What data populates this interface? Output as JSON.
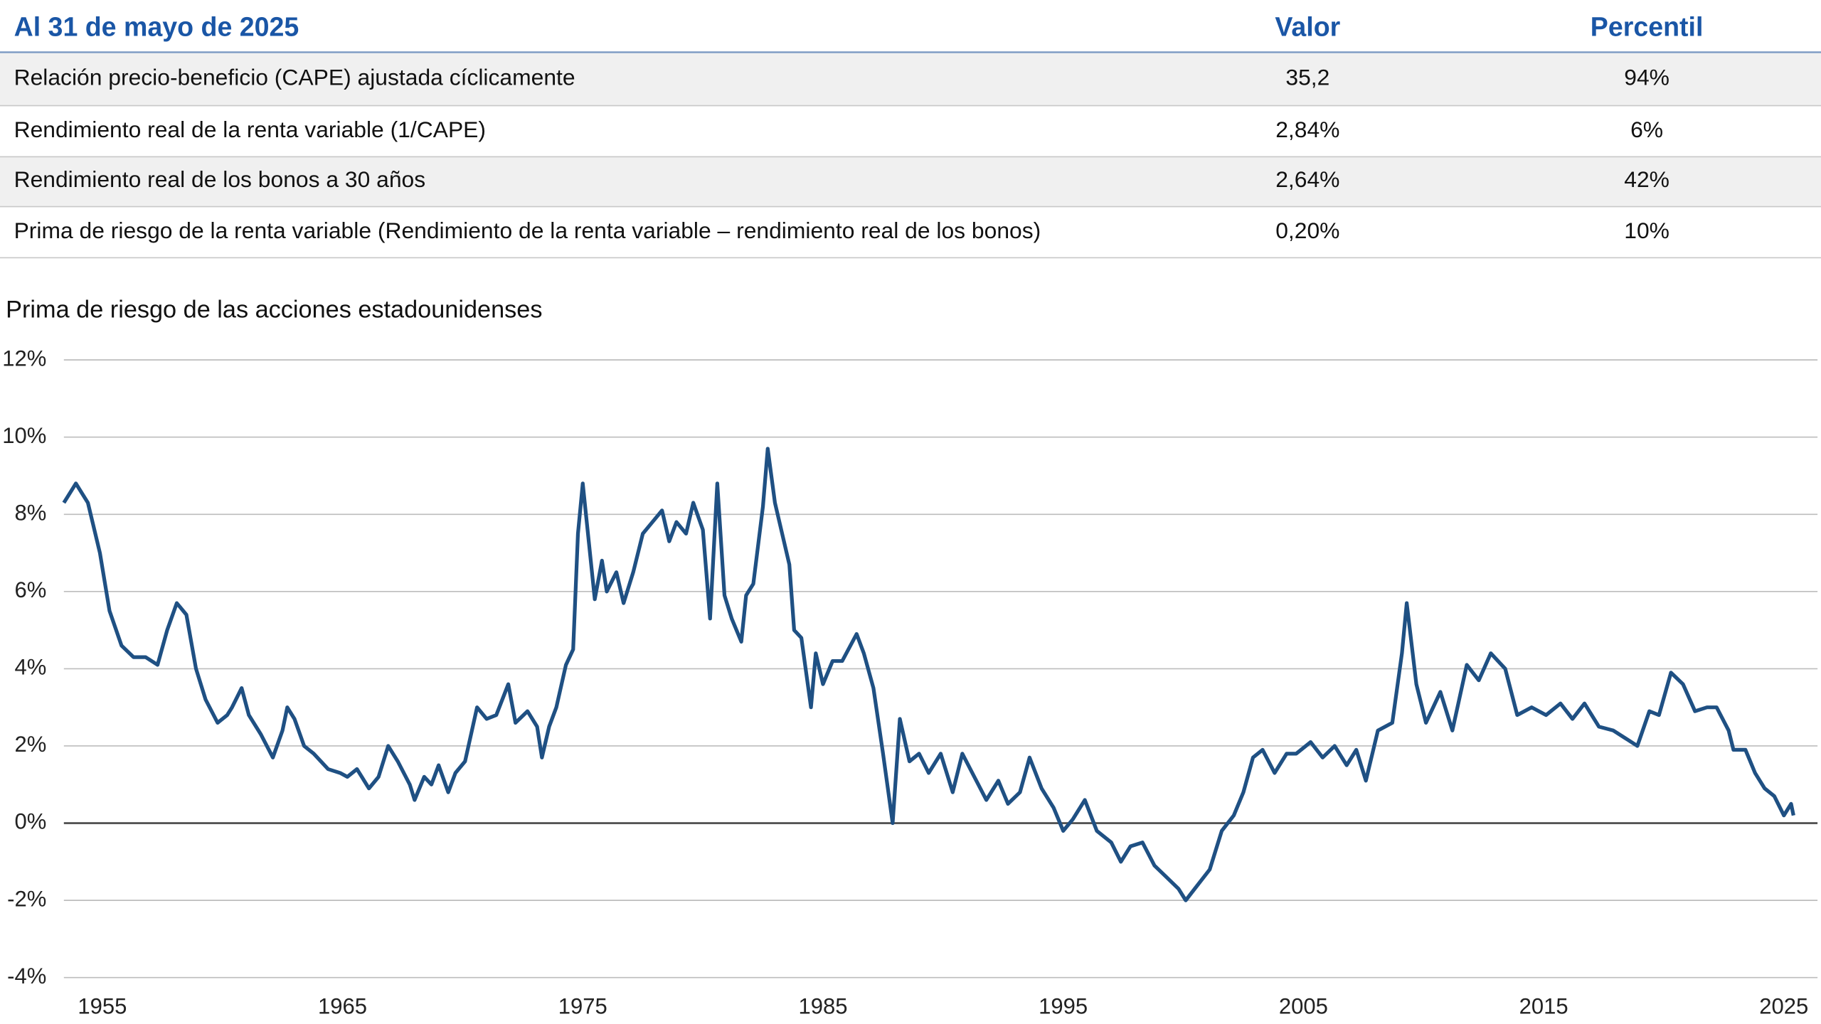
{
  "table": {
    "title": "Al 31 de mayo de 2025",
    "columns": [
      "Valor",
      "Percentil"
    ],
    "rows": [
      [
        "Relación precio-beneficio (CAPE) ajustada cíclicamente",
        "35,2",
        "94%"
      ],
      [
        "Rendimiento real de la renta variable (1/CAPE)",
        "2,84%",
        "6%"
      ],
      [
        "Rendimiento real de los bonos a 30 años",
        "2,64%",
        "42%"
      ],
      [
        "Prima de riesgo de la renta variable (Rendimiento de la renta variable – rendimiento real de los bonos)",
        "0,20%",
        "10%"
      ]
    ]
  },
  "chart_data": {
    "type": "line",
    "title": "Prima de riesgo de las acciones estadounidenses",
    "x": [
      1953.4,
      1953.9,
      1954.4,
      1954.9,
      1955.3,
      1955.8,
      1956.3,
      1956.8,
      1957.3,
      1957.7,
      1958.1,
      1958.5,
      1958.9,
      1959.3,
      1959.8,
      1960.2,
      1960.4,
      1960.8,
      1961.1,
      1961.6,
      1962.1,
      1962.5,
      1962.7,
      1963.0,
      1963.4,
      1963.8,
      1964.4,
      1964.9,
      1965.2,
      1965.6,
      1966.1,
      1966.5,
      1966.9,
      1967.3,
      1967.8,
      1968.0,
      1968.4,
      1968.7,
      1969.0,
      1969.4,
      1969.7,
      1970.1,
      1970.6,
      1971.0,
      1971.4,
      1971.9,
      1972.2,
      1972.7,
      1973.1,
      1973.3,
      1973.6,
      1973.9,
      1974.3,
      1974.6,
      1974.8,
      1975.0,
      1975.3,
      1975.5,
      1975.8,
      1976.0,
      1976.4,
      1976.7,
      1977.1,
      1977.5,
      1977.9,
      1978.3,
      1978.6,
      1978.9,
      1979.3,
      1979.6,
      1980.0,
      1980.3,
      1980.6,
      1980.9,
      1981.2,
      1981.6,
      1981.8,
      1982.1,
      1982.5,
      1982.7,
      1983.0,
      1983.3,
      1983.6,
      1983.8,
      1984.1,
      1984.5,
      1984.7,
      1985.0,
      1985.4,
      1985.8,
      1986.4,
      1986.7,
      1987.1,
      1987.5,
      1987.9,
      1988.2,
      1988.6,
      1989.0,
      1989.4,
      1989.9,
      1990.4,
      1990.8,
      1991.3,
      1991.8,
      1992.3,
      1992.7,
      1993.2,
      1993.6,
      1994.1,
      1994.6,
      1995.0,
      1995.4,
      1995.9,
      1996.4,
      1997.0,
      1997.4,
      1997.8,
      1998.3,
      1998.8,
      1999.3,
      1999.8,
      2000.1,
      2000.6,
      2001.1,
      2001.6,
      2002.1,
      2002.5,
      2002.9,
      2003.3,
      2003.8,
      2004.3,
      2004.7,
      2005.3,
      2005.8,
      2006.3,
      2006.8,
      2007.2,
      2007.6,
      2008.1,
      2008.7,
      2009.1,
      2009.3,
      2009.7,
      2010.1,
      2010.7,
      2011.2,
      2011.8,
      2012.3,
      2012.8,
      2013.4,
      2013.9,
      2014.5,
      2015.1,
      2015.7,
      2016.2,
      2016.7,
      2017.3,
      2017.9,
      2018.4,
      2018.9,
      2019.4,
      2019.8,
      2020.3,
      2020.8,
      2021.3,
      2021.8,
      2022.2,
      2022.7,
      2022.9,
      2023.4,
      2023.8,
      2024.2,
      2024.6,
      2025.0,
      2025.3,
      2025.4
    ],
    "series": [
      {
        "color": "#1f5083",
        "values": [
          8.3,
          8.8,
          8.3,
          7.0,
          5.5,
          4.6,
          4.3,
          4.3,
          4.1,
          5.0,
          5.7,
          5.4,
          4.0,
          3.2,
          2.6,
          2.8,
          3.0,
          3.5,
          2.8,
          2.3,
          1.7,
          2.4,
          3.0,
          2.7,
          2.0,
          1.8,
          1.4,
          1.3,
          1.2,
          1.4,
          0.9,
          1.2,
          2.0,
          1.6,
          1.0,
          0.6,
          1.2,
          1.0,
          1.5,
          0.8,
          1.3,
          1.6,
          3.0,
          2.7,
          2.8,
          3.6,
          2.6,
          2.9,
          2.5,
          1.7,
          2.5,
          3.0,
          4.1,
          4.5,
          7.5,
          8.8,
          7.0,
          5.8,
          6.8,
          6.0,
          6.5,
          5.7,
          6.5,
          7.5,
          7.8,
          8.1,
          7.3,
          7.8,
          7.5,
          8.3,
          7.6,
          5.3,
          8.8,
          5.9,
          5.3,
          4.7,
          5.9,
          6.2,
          8.2,
          9.7,
          8.3,
          7.5,
          6.7,
          5.0,
          4.8,
          3.0,
          4.4,
          3.6,
          4.2,
          4.2,
          4.9,
          4.4,
          3.5,
          1.8,
          0.0,
          2.7,
          1.6,
          1.8,
          1.3,
          1.8,
          0.8,
          1.8,
          1.2,
          0.6,
          1.1,
          0.5,
          0.8,
          1.7,
          0.9,
          0.4,
          -0.2,
          0.1,
          0.6,
          -0.2,
          -0.5,
          -1.0,
          -0.6,
          -0.5,
          -1.1,
          -1.4,
          -1.7,
          -2.0,
          -1.6,
          -1.2,
          -0.2,
          0.2,
          0.8,
          1.7,
          1.9,
          1.3,
          1.8,
          1.8,
          2.1,
          1.7,
          2.0,
          1.5,
          1.9,
          1.1,
          2.4,
          2.6,
          4.4,
          5.7,
          3.6,
          2.6,
          3.4,
          2.4,
          4.1,
          3.7,
          4.4,
          4.0,
          2.8,
          3.0,
          2.8,
          3.1,
          2.7,
          3.1,
          2.5,
          2.4,
          2.2,
          2.0,
          2.9,
          2.8,
          3.9,
          3.6,
          2.9,
          3.0,
          3.0,
          2.4,
          1.9,
          1.9,
          1.3,
          0.9,
          0.7,
          0.2,
          0.5,
          0.2
        ]
      }
    ],
    "xlim": [
      1953.4,
      2026.4
    ],
    "xticks": [
      1955,
      1965,
      1975,
      1985,
      1995,
      2005,
      2015,
      2025
    ],
    "ylim": [
      -4,
      12
    ],
    "yticks": [
      {
        "value": -4,
        "label": "-4%"
      },
      {
        "value": -2,
        "label": "-2%"
      },
      {
        "value": 0,
        "label": "0%"
      },
      {
        "value": 2,
        "label": "2%"
      },
      {
        "value": 4,
        "label": "4%"
      },
      {
        "value": 6,
        "label": "6%"
      },
      {
        "value": 8,
        "label": "8%"
      },
      {
        "value": 10,
        "label": "10%"
      },
      {
        "value": 12,
        "label": "12%"
      }
    ],
    "grid": true
  }
}
